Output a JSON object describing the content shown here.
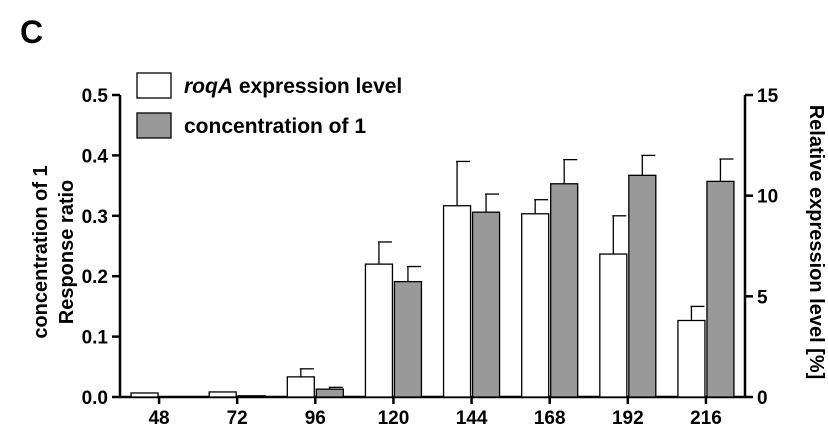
{
  "panel_letter": "C",
  "chart_data": {
    "type": "bar",
    "categories": [
      "48",
      "72",
      "96",
      "120",
      "144",
      "168",
      "192",
      "216"
    ],
    "ylabel_left_line1": "concentration of 1",
    "ylabel_left_line2": "Response ratio",
    "ylabel_right": "Relative expression level [%]",
    "ylim_left": [
      0,
      0.5
    ],
    "ylim_right": [
      0,
      15
    ],
    "yticks_left": [
      "0.0",
      "0.1",
      "0.2",
      "0.3",
      "0.4",
      "0.5"
    ],
    "yticks_right": [
      "0",
      "5",
      "10",
      "15"
    ],
    "legend_position": "top-left",
    "legend": [
      {
        "italic": "roqA",
        "rest": " expression level"
      },
      {
        "italic": "",
        "rest": "concentration of 1"
      }
    ],
    "series": [
      {
        "axis": "right",
        "color": "#ffffff",
        "values": [
          0.2,
          0.25,
          1.0,
          6.6,
          9.5,
          9.1,
          7.1,
          3.8
        ],
        "errors": [
          0,
          0,
          0.4,
          1.1,
          2.2,
          0.7,
          1.9,
          0.7
        ]
      },
      {
        "axis": "left",
        "color": "#999999",
        "values": [
          0.0,
          0.002,
          0.013,
          0.191,
          0.306,
          0.353,
          0.367,
          0.357
        ],
        "errors": [
          0,
          0,
          0.003,
          0.025,
          0.03,
          0.04,
          0.033,
          0.037
        ]
      }
    ]
  }
}
